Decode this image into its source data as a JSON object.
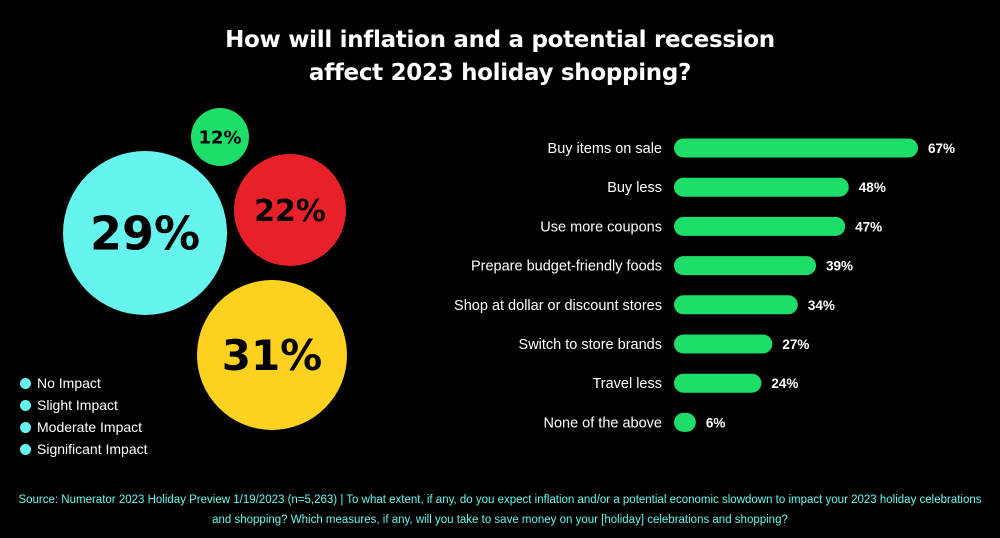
{
  "title_line1": "How will inflation and a potential recession",
  "title_line2": "affect 2023 holiday shopping?",
  "colors": {
    "background": "#000000",
    "bar": "#1ede6a",
    "cyan": "#66f5ee",
    "red": "#e8202a",
    "yellow": "#ffd21f",
    "green": "#1ede6a",
    "source_text": "#66f5ee"
  },
  "legend": [
    {
      "label": "No Impact",
      "color": "#66f5ee"
    },
    {
      "label": "Slight Impact",
      "color": "#66f5ee"
    },
    {
      "label": "Moderate Impact",
      "color": "#66f5ee"
    },
    {
      "label": "Significant Impact",
      "color": "#66f5ee"
    }
  ],
  "chart_data": [
    {
      "type": "bubble",
      "values": [
        {
          "label": "12%",
          "value": 12,
          "color": "#1ede6a"
        },
        {
          "label": "29%",
          "value": 29,
          "color": "#66f5ee"
        },
        {
          "label": "22%",
          "value": 22,
          "color": "#e8202a"
        },
        {
          "label": "31%",
          "value": 31,
          "color": "#ffd21f"
        }
      ]
    },
    {
      "type": "bar",
      "orientation": "horizontal",
      "categories": [
        "Buy items on sale",
        "Buy less",
        "Use more coupons",
        "Prepare budget-friendly foods",
        "Shop at dollar or discount stores",
        "Switch to store brands",
        "Travel less",
        "None of the above"
      ],
      "values": [
        67,
        48,
        47,
        39,
        34,
        27,
        24,
        6
      ],
      "value_labels": [
        "67%",
        "48%",
        "47%",
        "39%",
        "34%",
        "27%",
        "24%",
        "6%"
      ],
      "xlim": [
        0,
        100
      ]
    }
  ],
  "source": "Source: Numerator 2023 Holiday Preview 1/19/2023 (n=5,263) | To what extent, if any, do you expect inflation and/or a potential economic slowdown to impact your 2023 holiday celebrations and shopping? Which measures, if any, will you take to save money on your [holiday] celebrations and shopping?"
}
